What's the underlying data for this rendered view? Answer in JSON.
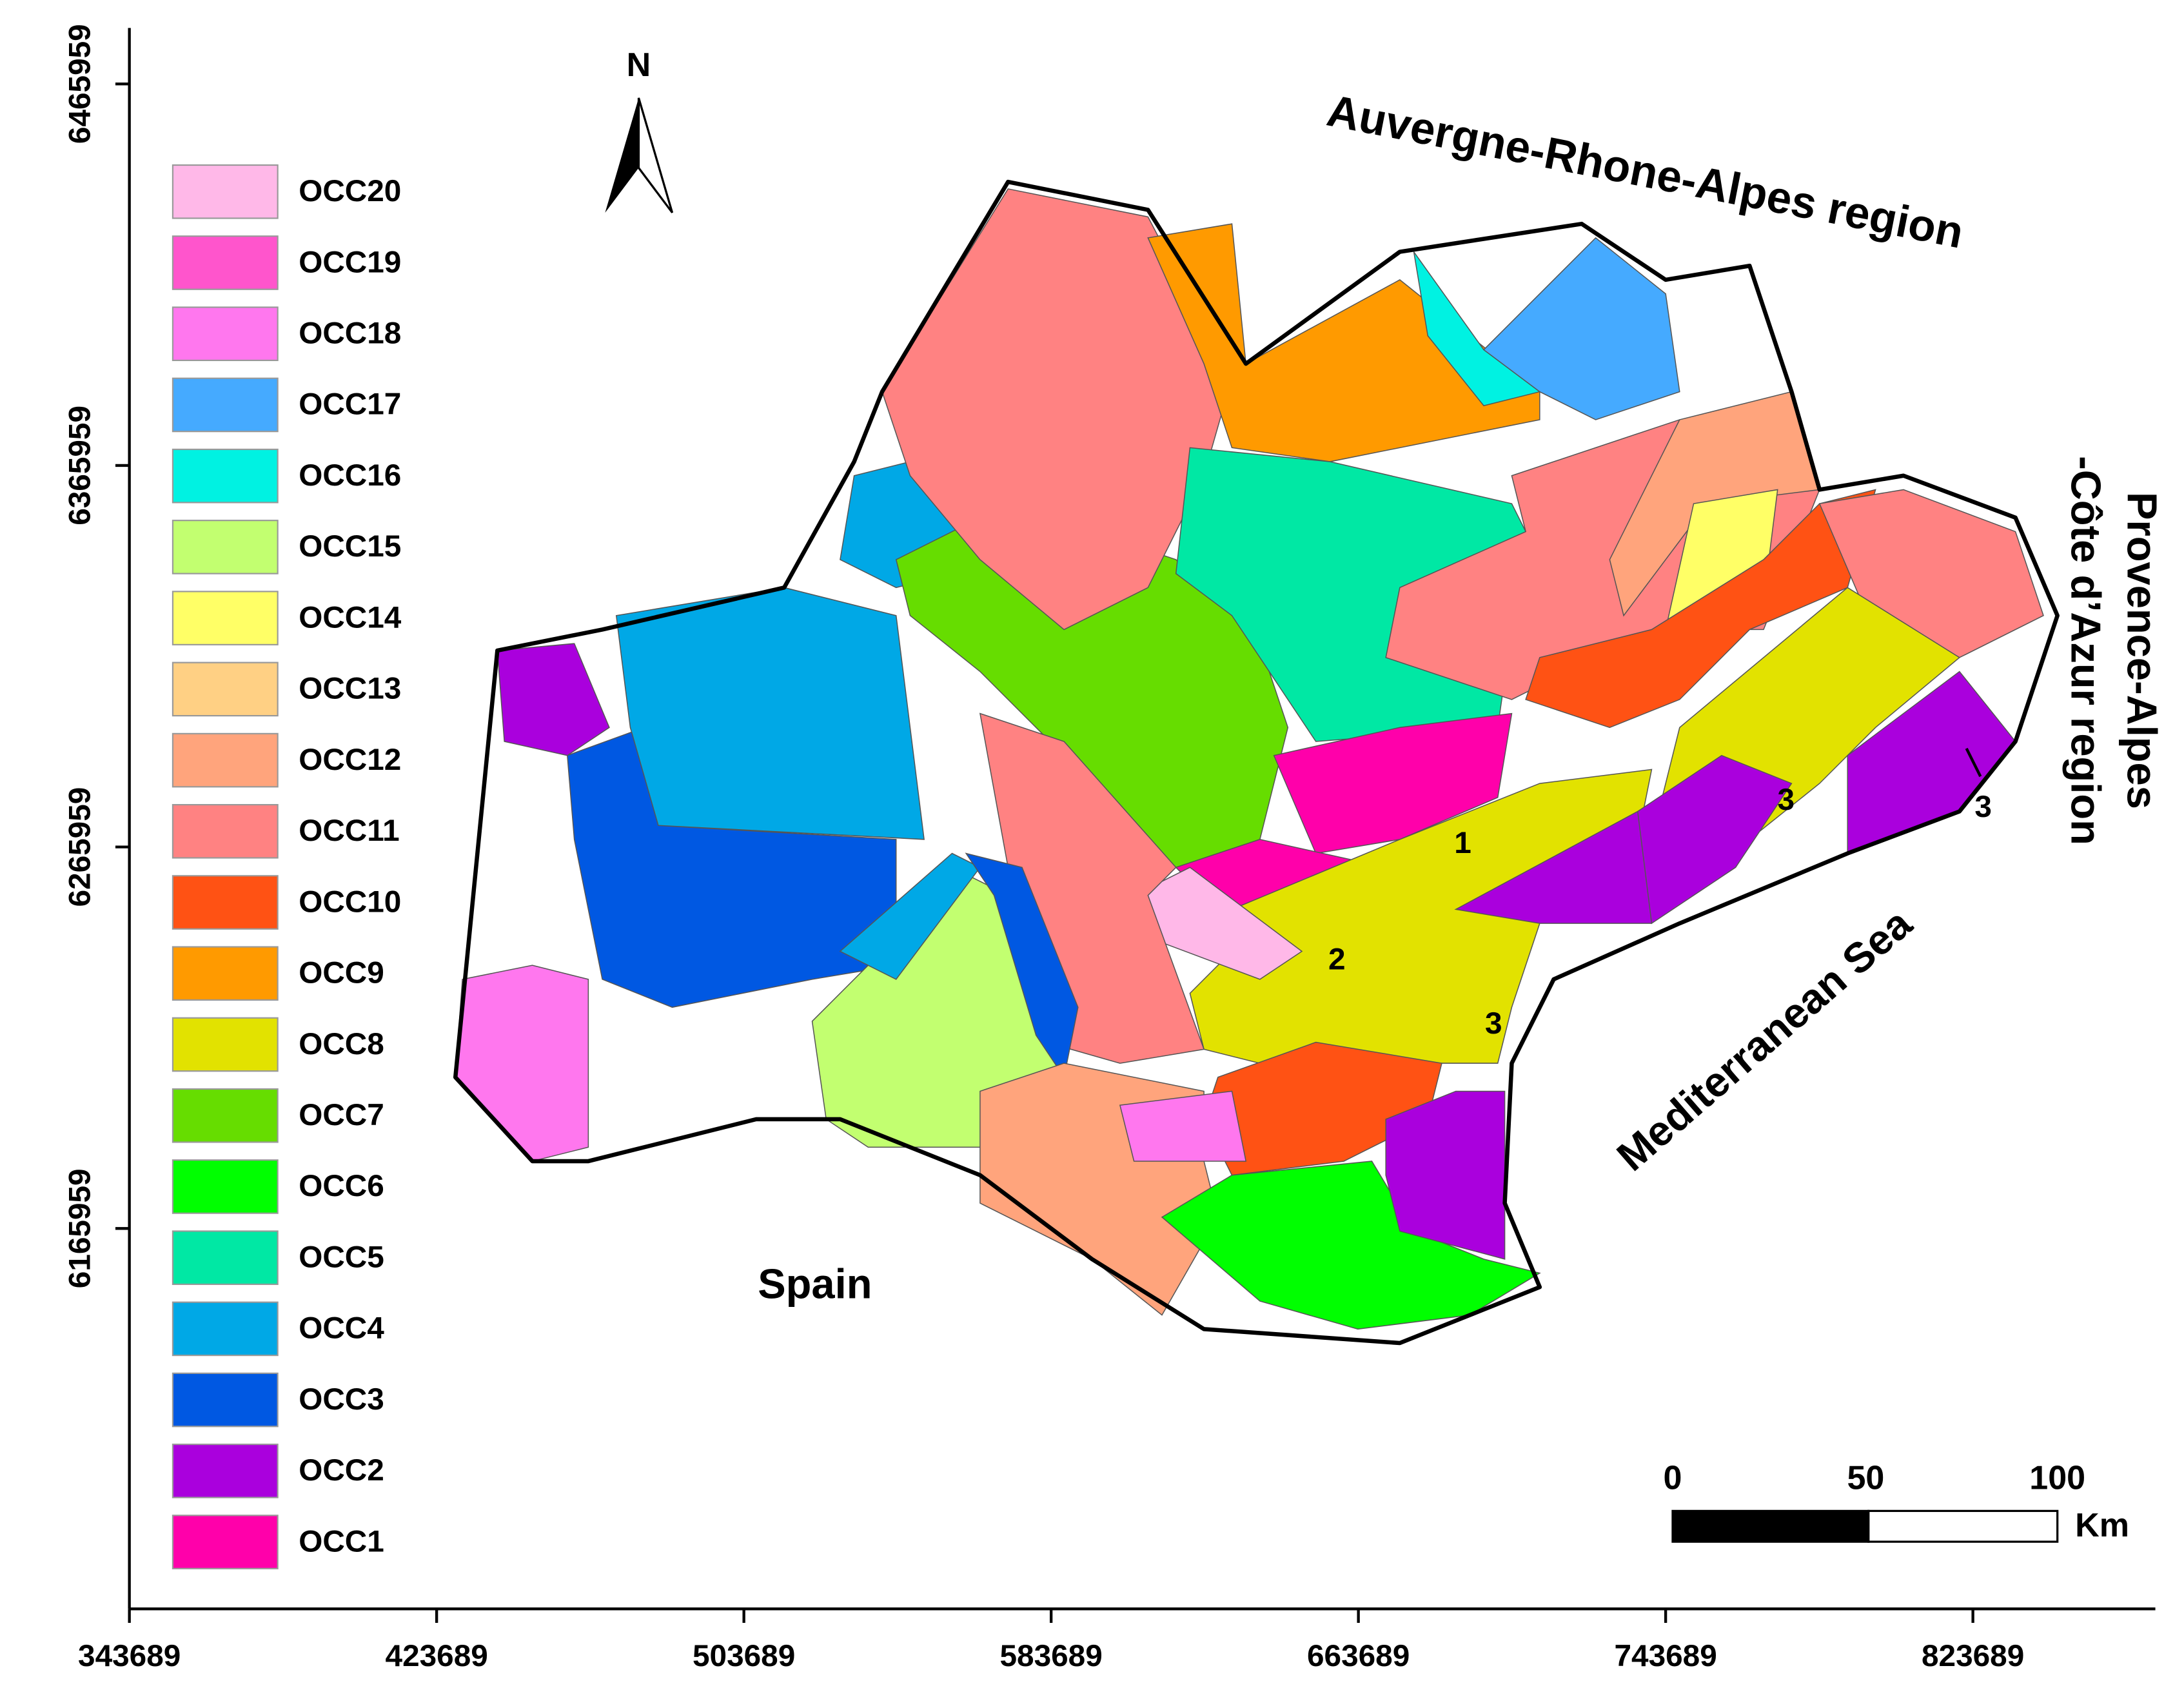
{
  "map": {
    "legend": [
      {
        "label": "OCC20",
        "color": "#ffb8e8"
      },
      {
        "label": "OCC19",
        "color": "#ff55cc"
      },
      {
        "label": "OCC18",
        "color": "#ff77ee"
      },
      {
        "label": "OCC17",
        "color": "#45aaff"
      },
      {
        "label": "OCC16",
        "color": "#00f2e2"
      },
      {
        "label": "OCC15",
        "color": "#c2ff70"
      },
      {
        "label": "OCC14",
        "color": "#ffff66"
      },
      {
        "label": "OCC13",
        "color": "#ffd084"
      },
      {
        "label": "OCC12",
        "color": "#ffa47c"
      },
      {
        "label": "OCC11",
        "color": "#ff8282"
      },
      {
        "label": "OCC10",
        "color": "#ff5214"
      },
      {
        "label": "OCC9",
        "color": "#ff9a00"
      },
      {
        "label": "OCC8",
        "color": "#e2e200"
      },
      {
        "label": "OCC7",
        "color": "#66dd00"
      },
      {
        "label": "OCC6",
        "color": "#00ff00"
      },
      {
        "label": "OCC5",
        "color": "#00e8a4"
      },
      {
        "label": "OCC4",
        "color": "#00a8e6"
      },
      {
        "label": "OCC3",
        "color": "#0058e2"
      },
      {
        "label": "OCC2",
        "color": "#aa00dd"
      },
      {
        "label": "OCC1",
        "color": "#ff00aa"
      }
    ],
    "x_ticks": [
      343689,
      423689,
      503689,
      583689,
      663689,
      743689,
      823689
    ],
    "y_ticks": [
      6465959,
      6365959,
      6265959,
      6165959
    ],
    "north": "N",
    "regions": {
      "north": "Auvergne-Rhone-Alpes region",
      "east": [
        "Provence-Alpes",
        "-Côte d’Azur region"
      ],
      "sea": "Mediterranean Sea",
      "south": "Spain"
    },
    "annotations": [
      "1",
      "2",
      "3",
      "3",
      "3"
    ],
    "scale_bar": {
      "labels": [
        0,
        50,
        100
      ],
      "unit": "Km"
    }
  }
}
